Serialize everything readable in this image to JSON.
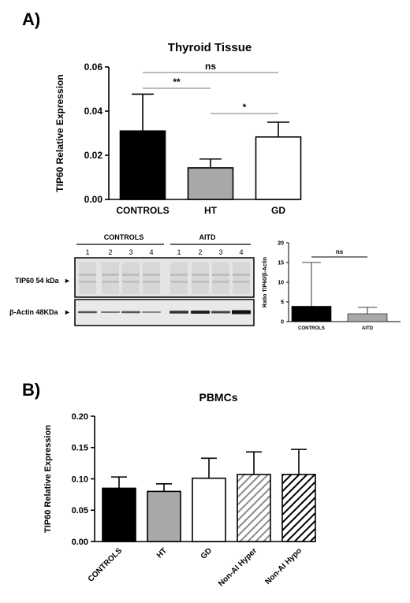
{
  "panel_a": {
    "letter": "A)",
    "western": {
      "group_labels": [
        "CONTROLS",
        "AITD"
      ],
      "lane_numbers": [
        "1",
        "2",
        "3",
        "4",
        "1",
        "2",
        "3",
        "4"
      ],
      "band_labels": [
        "TIP60 54 kDa",
        "β-Actin 48KDa"
      ],
      "arrow_glyph": "►"
    }
  },
  "panel_b": {
    "letter": "B)"
  },
  "chart_data": [
    {
      "type": "bar",
      "title": "Thyroid Tissue",
      "ylabel": "TIP60 Relative Expression",
      "xlabel": "",
      "categories": [
        "CONTROLS",
        "HT",
        "GD"
      ],
      "values": [
        0.031,
        0.0143,
        0.0283
      ],
      "errors": [
        0.0167,
        0.004,
        0.0067
      ],
      "ylim": [
        0,
        0.06
      ],
      "yticks": [
        "0.00",
        "0.02",
        "0.04",
        "0.06"
      ],
      "fills": [
        "#000000",
        "#a8a8a8",
        "#ffffff"
      ],
      "patterns": [
        "solid",
        "solid",
        "solid"
      ],
      "significance": [
        {
          "from": 0,
          "to": 2,
          "label": "ns"
        },
        {
          "from": 0,
          "to": 1,
          "label": "**"
        },
        {
          "from": 1,
          "to": 2,
          "label": "*"
        }
      ]
    },
    {
      "type": "bar",
      "title": "",
      "ylabel": "Ratio TIP60/β-Actin",
      "xlabel": "",
      "categories": [
        "CONTROLS",
        "AITD"
      ],
      "values": [
        3.9,
        2.0
      ],
      "errors": [
        11.1,
        1.6
      ],
      "ylim": [
        0,
        20
      ],
      "yticks": [
        "0",
        "5",
        "10",
        "15",
        "20"
      ],
      "fills": [
        "#000000",
        "#a8a8a8"
      ],
      "patterns": [
        "solid",
        "solid"
      ],
      "significance": [
        {
          "from": 0,
          "to": 1,
          "label": "ns"
        }
      ]
    },
    {
      "type": "bar",
      "title": "PBMCs",
      "ylabel": "TIP60 Relative Expression",
      "xlabel": "",
      "categories": [
        "CONTROLS",
        "HT",
        "GD",
        "Non-AI Hyper",
        "Non-AI Hypo"
      ],
      "values": [
        0.085,
        0.08,
        0.101,
        0.107,
        0.107
      ],
      "errors": [
        0.018,
        0.012,
        0.032,
        0.036,
        0.04
      ],
      "ylim": [
        0,
        0.2
      ],
      "yticks": [
        "0.00",
        "0.05",
        "0.10",
        "0.15",
        "0.20"
      ],
      "fills": [
        "#000000",
        "#a8a8a8",
        "#ffffff",
        "#ffffff",
        "#ffffff"
      ],
      "patterns": [
        "solid",
        "solid",
        "solid",
        "hatch-gray",
        "hatch-black"
      ],
      "significance": []
    }
  ]
}
